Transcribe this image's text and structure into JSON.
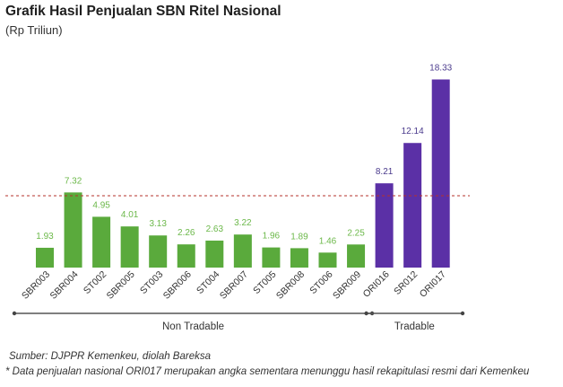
{
  "title": "Grafik Hasil Penjualan SBN Ritel Nasional",
  "subtitle": "(Rp Triliun)",
  "chart_data": {
    "type": "bar",
    "categories": [
      "SBR003",
      "SBR004",
      "ST002",
      "SBR005",
      "ST003",
      "SBR006",
      "ST004",
      "SBR007",
      "ST005",
      "SBR008",
      "ST006",
      "SBR009",
      "ORI016",
      "SR012",
      "ORI017"
    ],
    "values": [
      1.93,
      7.32,
      4.95,
      4.01,
      3.13,
      2.26,
      2.63,
      3.22,
      1.96,
      1.89,
      1.46,
      2.25,
      8.21,
      12.14,
      18.33
    ],
    "value_labels": [
      "1.93",
      "7.32",
      "4.95",
      "4.01",
      "3.13",
      "2.26",
      "2.63",
      "3.22",
      "1.96",
      "1.89",
      "1.46",
      "2.25",
      "8.21",
      "12.14",
      "18.33"
    ],
    "groups": [
      {
        "label": "Non Tradable",
        "start": 0,
        "end": 11,
        "color": "#5aaa3c",
        "label_color": "#6cb84a"
      },
      {
        "label": "Tradable",
        "start": 12,
        "end": 14,
        "color": "#5b30a6",
        "label_color": "#4a3a8c"
      }
    ],
    "reference_line": {
      "value": 7.0,
      "style": "dashed",
      "color": "#b5312b"
    },
    "ylim": [
      0,
      19
    ],
    "grid": false,
    "legend": "none"
  },
  "source": "Sumber: DJPPR Kemenkeu, diolah Bareksa",
  "note": "* Data penjualan nasional ORI017 merupakan angka sementara menunggu hasil rekapitulasi resmi dari Kemenkeu"
}
